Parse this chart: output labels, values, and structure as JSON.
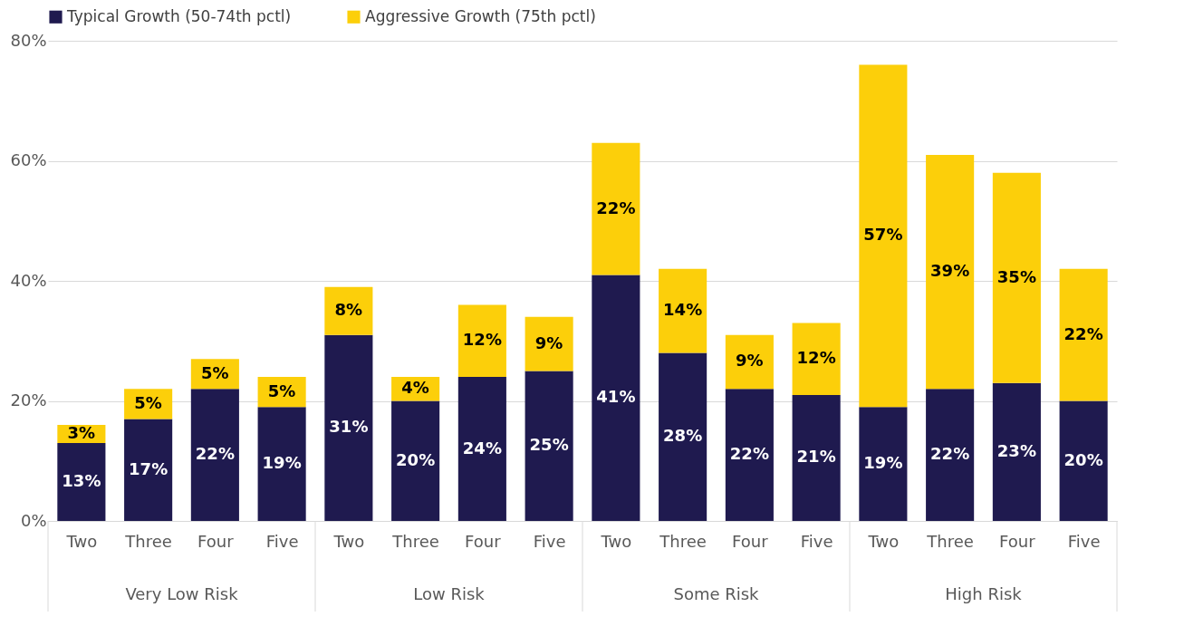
{
  "chart_data": {
    "type": "bar",
    "stacked": true,
    "categories": [
      "Two",
      "Three",
      "Four",
      "Five",
      "Two",
      "Three",
      "Four",
      "Five",
      "Two",
      "Three",
      "Four",
      "Five",
      "Two",
      "Three",
      "Four",
      "Five"
    ],
    "series": [
      {
        "name": "Typical Growth (50-74th pctl)",
        "color": "#1f1a4f",
        "values": [
          13,
          17,
          22,
          19,
          31,
          20,
          24,
          25,
          41,
          28,
          22,
          21,
          19,
          22,
          23,
          20
        ],
        "value_labels": [
          "13%",
          "17%",
          "22%",
          "19%",
          "31%",
          "20%",
          "24%",
          "25%",
          "41%",
          "28%",
          "22%",
          "21%",
          "19%",
          "22%",
          "23%",
          "20%"
        ]
      },
      {
        "name": "Aggressive Growth (75th pctl)",
        "color": "#fccf0a",
        "values": [
          3,
          5,
          5,
          5,
          8,
          4,
          12,
          9,
          22,
          14,
          9,
          12,
          57,
          39,
          35,
          22
        ],
        "value_labels": [
          "3%",
          "5%",
          "5%",
          "5%",
          "8%",
          "4%",
          "12%",
          "9%",
          "22%",
          "14%",
          "9%",
          "12%",
          "57%",
          "39%",
          "35%",
          "22%"
        ]
      }
    ],
    "annotations": [
      "Very Low Risk",
      "Low Risk",
      "Some Risk",
      "High Risk"
    ],
    "ylim": [
      0,
      80
    ],
    "yticks": [
      {
        "value": 0,
        "label": "0%"
      },
      {
        "value": 20,
        "label": "20%"
      },
      {
        "value": 40,
        "label": "40%"
      },
      {
        "value": 60,
        "label": "60%"
      },
      {
        "value": 80,
        "label": "80%"
      }
    ],
    "grid": "y",
    "legend": "top"
  }
}
